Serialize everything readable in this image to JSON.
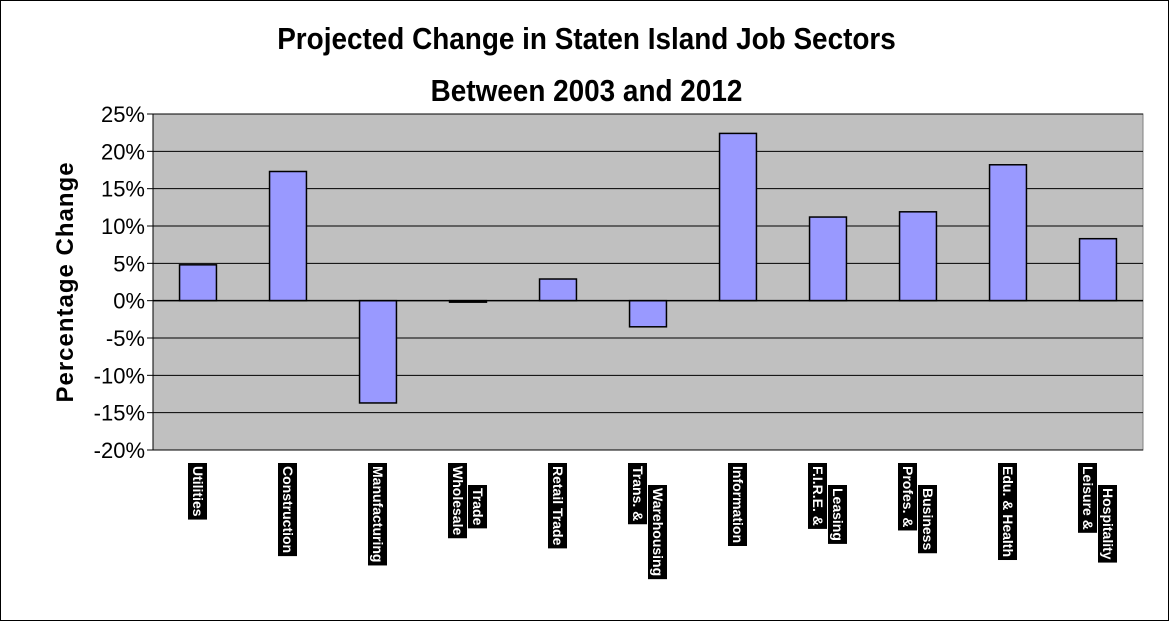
{
  "chart_data": {
    "type": "bar",
    "title": "Projected Change in Staten Island Job Sectors",
    "subtitle": "Between 2003 and 2012",
    "xlabel": "",
    "ylabel": "Percentage Change",
    "ylim": [
      -20,
      25
    ],
    "yticks": [
      "25%",
      "20%",
      "15%",
      "10%",
      "5%",
      "0%",
      "-5%",
      "-10%",
      "-15%",
      "-20%"
    ],
    "ytick_values": [
      25,
      20,
      15,
      10,
      5,
      0,
      -5,
      -10,
      -15,
      -20
    ],
    "grid": true,
    "legend": "none",
    "categories": [
      [
        "Utilities"
      ],
      [
        "Construction"
      ],
      [
        "Manufacturing"
      ],
      [
        "Wholesale",
        "Trade"
      ],
      [
        "Retail Trade"
      ],
      [
        "Trans. &",
        "Warehousing"
      ],
      [
        "Information"
      ],
      [
        "F.I.R.E. &",
        "Leasing"
      ],
      [
        "Profes. &",
        "Business"
      ],
      [
        "Edu. & Health"
      ],
      [
        "Leisure &",
        "Hospitality"
      ]
    ],
    "values": [
      4.8,
      17.3,
      -13.7,
      -0.2,
      2.9,
      -3.5,
      22.4,
      11.2,
      11.9,
      18.2,
      8.3
    ]
  },
  "colors": {
    "plot_bg": "#c0c0c0",
    "bar_fill": "#9999ff",
    "bar_stroke": "#000000",
    "grid": "#000000"
  }
}
